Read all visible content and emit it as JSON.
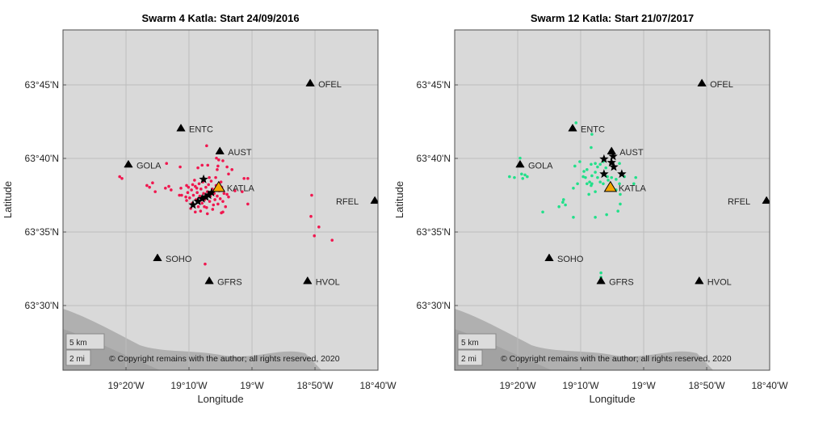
{
  "figure": {
    "xlabel": "Longitude",
    "ylabel": "Latitude",
    "lonlim": [
      -19.5,
      -18.6667
    ],
    "latlim": [
      63.4267,
      63.8123
    ],
    "lon_ticks": [
      {
        "value": -19.3333,
        "label": "19°20'W"
      },
      {
        "value": -19.1667,
        "label": "19°10'W"
      },
      {
        "value": -19.0,
        "label": "19°W"
      },
      {
        "value": -18.8333,
        "label": "18°50'W"
      },
      {
        "value": -18.6667,
        "label": "18°40'W"
      }
    ],
    "lat_ticks": [
      {
        "value": 63.75,
        "label": "63°45'N"
      },
      {
        "value": 63.6667,
        "label": "63°40'N"
      },
      {
        "value": 63.5833,
        "label": "63°35'N"
      },
      {
        "value": 63.5,
        "label": "63°30'N"
      }
    ],
    "grid": true,
    "map_color": "#d9d9d9",
    "coast_color": "#a8a8a8",
    "scale_bar": {
      "km": "5 km",
      "mi": "2 mi"
    },
    "copyright": "© Copyright remains with the author; all rights reserved, 2020",
    "stations": [
      {
        "name": "OFEL",
        "lon": -18.846,
        "lat": 63.752,
        "color": "#000000"
      },
      {
        "name": "ENTC",
        "lon": -19.188,
        "lat": 63.701,
        "color": "#000000"
      },
      {
        "name": "AUST",
        "lon": -19.085,
        "lat": 63.675,
        "color": "#000000"
      },
      {
        "name": "GOLA",
        "lon": -19.327,
        "lat": 63.66,
        "color": "#000000"
      },
      {
        "name": "KATLA",
        "lon": -19.088,
        "lat": 63.634,
        "color": "#f5a800"
      },
      {
        "name": "RFEL",
        "lon": -18.675,
        "lat": 63.619,
        "color": "#000000",
        "label_side": "left"
      },
      {
        "name": "SOHO",
        "lon": -19.25,
        "lat": 63.554,
        "color": "#000000"
      },
      {
        "name": "GFRS",
        "lon": -19.113,
        "lat": 63.528,
        "color": "#000000"
      },
      {
        "name": "HVOL",
        "lon": -18.853,
        "lat": 63.528,
        "color": "#000000"
      }
    ]
  },
  "chart_data": [
    {
      "type": "scatter",
      "title": "Swarm 4 Katla: Start 24/09/2016",
      "event_color": "#f0174f",
      "events": [
        [
          -19.12,
          63.681
        ],
        [
          -19.226,
          63.661
        ],
        [
          -19.19,
          63.657
        ],
        [
          -19.35,
          63.646
        ],
        [
          -19.344,
          63.644
        ],
        [
          -19.278,
          63.636
        ],
        [
          -19.271,
          63.634
        ],
        [
          -19.263,
          63.639
        ],
        [
          -19.256,
          63.629
        ],
        [
          -19.229,
          63.633
        ],
        [
          -19.22,
          63.635
        ],
        [
          -19.214,
          63.631
        ],
        [
          -19.188,
          63.633
        ],
        [
          -19.186,
          63.625
        ],
        [
          -19.173,
          63.636
        ],
        [
          -19.192,
          63.625
        ],
        [
          -19.173,
          63.619
        ],
        [
          -19.15,
          63.606
        ],
        [
          -19.081,
          63.605
        ],
        [
          -19.077,
          63.606
        ],
        [
          -19.011,
          63.615
        ],
        [
          -19.021,
          63.644
        ],
        [
          -19.011,
          63.644
        ],
        [
          -19.053,
          63.654
        ],
        [
          -19.066,
          63.657
        ],
        [
          -19.062,
          63.649
        ],
        [
          -19.092,
          63.654
        ],
        [
          -19.09,
          63.658
        ],
        [
          -19.094,
          63.667
        ],
        [
          -19.088,
          63.665
        ],
        [
          -19.077,
          63.664
        ],
        [
          -19.143,
          63.656
        ],
        [
          -19.132,
          63.659
        ],
        [
          -19.117,
          63.659
        ],
        [
          -19.045,
          63.63
        ],
        [
          -19.066,
          63.626
        ],
        [
          -19.062,
          63.623
        ],
        [
          -19.026,
          63.629
        ],
        [
          -18.842,
          63.625
        ],
        [
          -18.844,
          63.601
        ],
        [
          -18.835,
          63.579
        ],
        [
          -18.823,
          63.589
        ],
        [
          -18.788,
          63.574
        ],
        [
          -19.124,
          63.547
        ],
        [
          -19.17,
          63.628
        ],
        [
          -19.165,
          63.622
        ],
        [
          -19.16,
          63.631
        ],
        [
          -19.158,
          63.616
        ],
        [
          -19.155,
          63.625
        ],
        [
          -19.15,
          63.635
        ],
        [
          -19.148,
          63.62
        ],
        [
          -19.145,
          63.628
        ],
        [
          -19.142,
          63.612
        ],
        [
          -19.14,
          63.638
        ],
        [
          -19.138,
          63.624
        ],
        [
          -19.135,
          63.632
        ],
        [
          -19.132,
          63.616
        ],
        [
          -19.13,
          63.64
        ],
        [
          -19.128,
          63.627
        ],
        [
          -19.125,
          63.62
        ],
        [
          -19.122,
          63.634
        ],
        [
          -19.12,
          63.611
        ],
        [
          -19.118,
          63.629
        ],
        [
          -19.115,
          63.637
        ],
        [
          -19.112,
          63.618
        ],
        [
          -19.11,
          63.624
        ],
        [
          -19.108,
          63.641
        ],
        [
          -19.105,
          63.632
        ],
        [
          -19.102,
          63.614
        ],
        [
          -19.1,
          63.627
        ],
        [
          -19.098,
          63.62
        ],
        [
          -19.095,
          63.636
        ],
        [
          -19.092,
          63.624
        ],
        [
          -19.09,
          63.615
        ],
        [
          -19.087,
          63.63
        ],
        [
          -19.084,
          63.621
        ],
        [
          -19.08,
          63.634
        ],
        [
          -19.077,
          63.618
        ],
        [
          -19.074,
          63.627
        ],
        [
          -19.07,
          63.612
        ],
        [
          -19.162,
          63.61
        ],
        [
          -19.168,
          63.634
        ],
        [
          -19.175,
          63.623
        ],
        [
          -19.152,
          63.642
        ],
        [
          -19.136,
          63.607
        ],
        [
          -19.118,
          63.604
        ],
        [
          -19.104,
          63.609
        ],
        [
          -19.146,
          63.633
        ],
        [
          -19.126,
          63.612
        ],
        [
          -19.113,
          63.645
        ],
        [
          -19.096,
          63.645
        ],
        [
          -19.082,
          63.64
        ],
        [
          -19.157,
          63.637
        ],
        [
          -19.14,
          63.618
        ]
      ],
      "mainshock_markers": [
        [
          -19.128,
          63.643
        ],
        [
          -19.156,
          63.614
        ],
        [
          -19.143,
          63.618
        ],
        [
          -19.132,
          63.621
        ],
        [
          -19.122,
          63.623
        ],
        [
          -19.115,
          63.625
        ],
        [
          -19.107,
          63.628
        ]
      ]
    },
    {
      "type": "scatter",
      "title": "Swarm 12 Katla: Start 21/07/2017",
      "event_color": "#22e08a",
      "events": [
        [
          -19.179,
          63.707
        ],
        [
          -19.137,
          63.694
        ],
        [
          -19.139,
          63.679
        ],
        [
          -19.327,
          63.667
        ],
        [
          -19.323,
          63.649
        ],
        [
          -19.314,
          63.648
        ],
        [
          -19.308,
          63.646
        ],
        [
          -19.32,
          63.644
        ],
        [
          -19.355,
          63.646
        ],
        [
          -19.342,
          63.645
        ],
        [
          -19.169,
          63.663
        ],
        [
          -19.182,
          63.658
        ],
        [
          -19.158,
          63.652
        ],
        [
          -19.15,
          63.654
        ],
        [
          -19.16,
          63.646
        ],
        [
          -19.154,
          63.645
        ],
        [
          -19.137,
          63.647
        ],
        [
          -19.128,
          63.651
        ],
        [
          -19.122,
          63.645
        ],
        [
          -19.143,
          63.64
        ],
        [
          -19.15,
          63.638
        ],
        [
          -19.137,
          63.638
        ],
        [
          -19.115,
          63.64
        ],
        [
          -19.107,
          63.638
        ],
        [
          -19.094,
          63.642
        ],
        [
          -19.085,
          63.645
        ],
        [
          -19.073,
          63.643
        ],
        [
          -19.064,
          63.638
        ],
        [
          -19.051,
          63.646
        ],
        [
          -19.021,
          63.645
        ],
        [
          -19.026,
          63.638
        ],
        [
          -19.062,
          63.626
        ],
        [
          -19.073,
          63.631
        ],
        [
          -19.128,
          63.629
        ],
        [
          -19.139,
          63.636
        ],
        [
          -19.107,
          63.663
        ],
        [
          -19.122,
          63.657
        ],
        [
          -19.1,
          63.656
        ],
        [
          -19.064,
          63.661
        ],
        [
          -19.115,
          63.66
        ],
        [
          -19.175,
          63.638
        ],
        [
          -19.186,
          63.633
        ],
        [
          -19.212,
          63.62
        ],
        [
          -19.214,
          63.617
        ],
        [
          -19.207,
          63.614
        ],
        [
          -19.224,
          63.612
        ],
        [
          -19.267,
          63.606
        ],
        [
          -19.186,
          63.6
        ],
        [
          -19.128,
          63.6
        ],
        [
          -19.098,
          63.603
        ],
        [
          -19.068,
          63.607
        ],
        [
          -19.062,
          63.615
        ],
        [
          -19.096,
          63.646
        ],
        [
          -19.139,
          63.66
        ],
        [
          -19.128,
          63.661
        ],
        [
          -19.145,
          63.626
        ],
        [
          -19.113,
          63.537
        ],
        [
          -19.113,
          63.532
        ]
      ],
      "mainshock_markers": [
        [
          -19.105,
          63.666
        ],
        [
          -19.085,
          63.662
        ],
        [
          -19.079,
          63.657
        ],
        [
          -19.081,
          63.669
        ],
        [
          -19.105,
          63.649
        ],
        [
          -19.058,
          63.649
        ]
      ]
    }
  ]
}
